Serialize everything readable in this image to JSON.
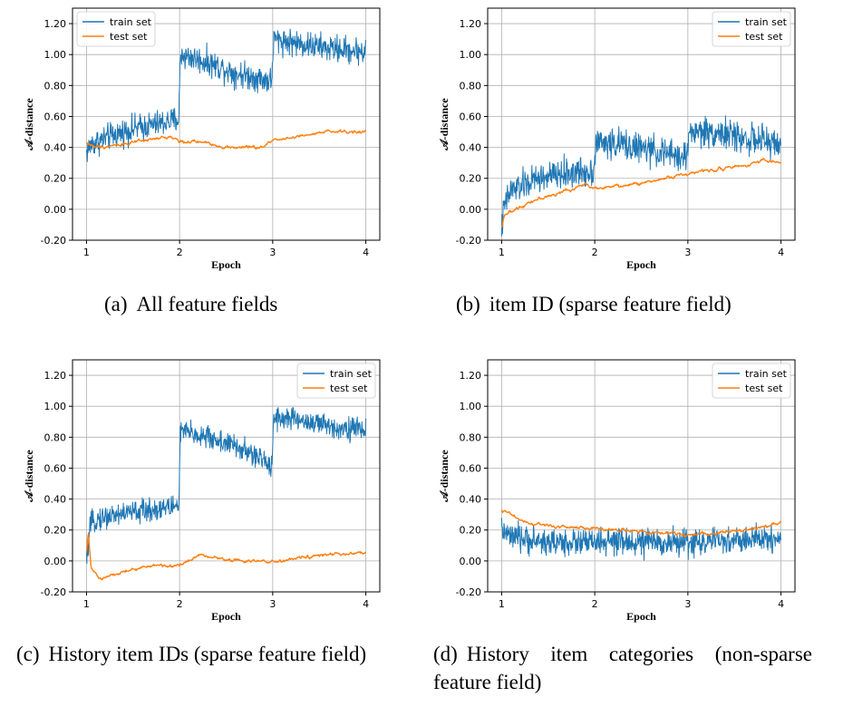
{
  "figure": {
    "captions": [
      {
        "tag": "(a)",
        "text": "All feature fields"
      },
      {
        "tag": "(b)",
        "text": "item ID (sparse feature field)"
      },
      {
        "tag": "(c)",
        "text": "History item IDs (sparse feature field)"
      },
      {
        "tag": "(d)",
        "text": "History item categories (non-sparse feature field)"
      }
    ]
  },
  "colors": {
    "train": "#1f77b4",
    "test": "#ff7f0e",
    "grid": "#b0b0b0"
  },
  "chart_data": [
    {
      "type": "line",
      "xlabel": "Epoch",
      "ylabel": "𝒜-distance",
      "xticks": [
        "1",
        "2",
        "3",
        "4"
      ],
      "yticks": [
        "-0.20",
        "0.00",
        "0.20",
        "0.40",
        "0.60",
        "0.80",
        "1.00",
        "1.20"
      ],
      "xlim": [
        0.85,
        4.15
      ],
      "ylim": [
        -0.2,
        1.3
      ],
      "legend": "top-left",
      "series": [
        {
          "name": "train set",
          "noise": 0.08,
          "x": [
            1,
            1.05,
            1.25,
            1.5,
            1.75,
            1.99,
            2.01,
            2.3,
            2.6,
            2.99,
            3.01,
            3.3,
            3.6,
            4
          ],
          "y": [
            0.37,
            0.42,
            0.47,
            0.52,
            0.55,
            0.58,
            1.0,
            0.95,
            0.88,
            0.83,
            1.1,
            1.07,
            1.04,
            1.02
          ]
        },
        {
          "name": "test set",
          "noise": 0.02,
          "x": [
            1,
            1.1,
            1.5,
            1.9,
            2.0,
            2.3,
            2.5,
            2.9,
            3.0,
            3.3,
            3.6,
            4
          ],
          "y": [
            0.43,
            0.4,
            0.43,
            0.47,
            0.44,
            0.43,
            0.4,
            0.4,
            0.45,
            0.47,
            0.5,
            0.5
          ]
        }
      ]
    },
    {
      "type": "line",
      "xlabel": "Epoch",
      "ylabel": "𝒜-distance",
      "xticks": [
        "1",
        "2",
        "3",
        "4"
      ],
      "yticks": [
        "-0.20",
        "0.00",
        "0.20",
        "0.40",
        "0.60",
        "0.80",
        "1.00",
        "1.20"
      ],
      "xlim": [
        0.85,
        4.15
      ],
      "ylim": [
        -0.2,
        1.3
      ],
      "legend": "top-right",
      "series": [
        {
          "name": "train set",
          "noise": 0.09,
          "x": [
            1,
            1.03,
            1.1,
            1.4,
            1.7,
            1.99,
            2.01,
            2.3,
            2.6,
            2.99,
            3.01,
            3.3,
            3.6,
            4
          ],
          "y": [
            -0.12,
            0.02,
            0.12,
            0.2,
            0.23,
            0.25,
            0.43,
            0.42,
            0.38,
            0.33,
            0.5,
            0.5,
            0.46,
            0.42
          ]
        },
        {
          "name": "test set",
          "noise": 0.02,
          "x": [
            1,
            1.03,
            1.1,
            1.3,
            1.6,
            1.9,
            2.0,
            2.3,
            2.6,
            2.9,
            3.0,
            3.3,
            3.6,
            3.8,
            4
          ],
          "y": [
            -0.12,
            -0.03,
            -0.02,
            0.05,
            0.1,
            0.16,
            0.14,
            0.15,
            0.18,
            0.22,
            0.23,
            0.26,
            0.28,
            0.32,
            0.3
          ]
        }
      ]
    },
    {
      "type": "line",
      "xlabel": "Epoch",
      "ylabel": "𝒜-distance",
      "xticks": [
        "1",
        "2",
        "3",
        "4"
      ],
      "yticks": [
        "-0.20",
        "0.00",
        "0.20",
        "0.40",
        "0.60",
        "0.80",
        "1.00",
        "1.20"
      ],
      "xlim": [
        0.85,
        4.15
      ],
      "ylim": [
        -0.2,
        1.3
      ],
      "legend": "top-right",
      "series": [
        {
          "name": "train set",
          "noise": 0.07,
          "x": [
            1,
            1.04,
            1.1,
            1.4,
            1.7,
            1.99,
            2.01,
            2.3,
            2.6,
            2.99,
            3.01,
            3.3,
            3.6,
            4
          ],
          "y": [
            0.0,
            0.22,
            0.27,
            0.31,
            0.33,
            0.36,
            0.84,
            0.8,
            0.74,
            0.62,
            0.93,
            0.91,
            0.87,
            0.85
          ]
        },
        {
          "name": "test set",
          "noise": 0.02,
          "x": [
            1,
            1.02,
            1.05,
            1.15,
            1.4,
            1.7,
            2.0,
            2.2,
            2.5,
            2.8,
            3.0,
            3.3,
            3.6,
            4
          ],
          "y": [
            0.05,
            0.18,
            -0.05,
            -0.12,
            -0.07,
            -0.03,
            -0.03,
            0.04,
            0.01,
            0.0,
            -0.01,
            0.02,
            0.04,
            0.05
          ]
        }
      ]
    },
    {
      "type": "line",
      "xlabel": "Epoch",
      "ylabel": "𝒜-distance",
      "xticks": [
        "1",
        "2",
        "3",
        "4"
      ],
      "yticks": [
        "-0.20",
        "0.00",
        "0.20",
        "0.40",
        "0.60",
        "0.80",
        "1.00",
        "1.20"
      ],
      "xlim": [
        0.85,
        4.15
      ],
      "ylim": [
        -0.2,
        1.3
      ],
      "legend": "top-right",
      "series": [
        {
          "name": "train set",
          "noise": 0.08,
          "x": [
            1,
            1.1,
            1.5,
            2.0,
            2.5,
            3.0,
            3.5,
            4
          ],
          "y": [
            0.2,
            0.15,
            0.12,
            0.12,
            0.12,
            0.12,
            0.13,
            0.15
          ]
        },
        {
          "name": "test set",
          "noise": 0.02,
          "x": [
            1,
            1.1,
            1.3,
            1.6,
            2.0,
            2.5,
            3.0,
            3.5,
            3.8,
            4
          ],
          "y": [
            0.33,
            0.3,
            0.24,
            0.22,
            0.21,
            0.19,
            0.17,
            0.19,
            0.22,
            0.25
          ]
        }
      ]
    }
  ]
}
